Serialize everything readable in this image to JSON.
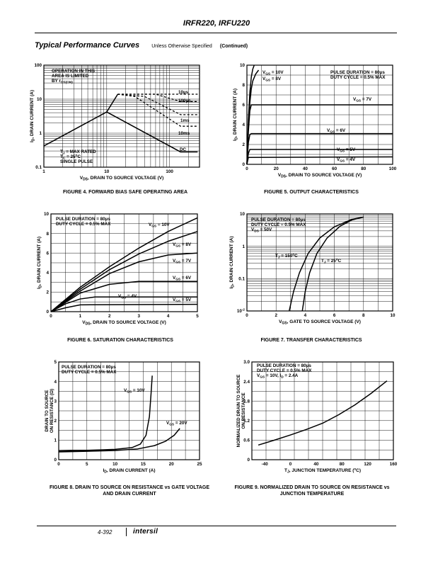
{
  "header": {
    "title": "IRFR220, IRFU220"
  },
  "section": {
    "title": "Typical Performance Curves",
    "note": "Unless Otherwise Specified",
    "continued": "(Continued)"
  },
  "footer": {
    "page": "4-392",
    "logo": "intersil"
  },
  "chart_data": [
    {
      "id": "fig4",
      "type": "line",
      "xscale": "log",
      "yscale": "log",
      "title": "FIGURE 4. FORWARD BIAS SAFE OPERATING AREA",
      "xlabel": "VDS, DRAIN TO SOURCE VOLTAGE (V)",
      "ylabel": "ID, DRAIN CURRENT (A)",
      "xlim": [
        1,
        300
      ],
      "ylim": [
        0.1,
        100
      ],
      "xticks": [
        1,
        10,
        100
      ],
      "xtick_labels": [
        "1",
        "10",
        "100"
      ],
      "yticks": [
        0.1,
        1,
        10,
        100
      ],
      "ytick_labels": [
        "0.1",
        "1",
        "10",
        "100"
      ],
      "grid": true,
      "annotations": [
        "OPERATION IN THIS",
        "AREA IS LIMITED",
        "BY rDS(ON)",
        "TJ = MAX RATED",
        "TC = 25oC",
        "SINGLE PULSE"
      ],
      "series": [
        {
          "name": "rDS(ON) limit",
          "style": "solid",
          "x": [
            1,
            10,
            15
          ],
          "y": [
            0.42,
            4.2,
            14
          ]
        },
        {
          "name": "10µs",
          "style": "dashed",
          "x": [
            15,
            150,
            280
          ],
          "y": [
            14,
            14,
            14
          ]
        },
        {
          "name": "100µs",
          "style": "dashed",
          "x": [
            15,
            60,
            150,
            280
          ],
          "y": [
            14,
            14,
            8.5,
            8.5
          ]
        },
        {
          "name": "1ms",
          "style": "dashed",
          "x": [
            15,
            40,
            150,
            280
          ],
          "y": [
            14,
            12,
            3.5,
            3.5
          ]
        },
        {
          "name": "10ms",
          "style": "dashed",
          "x": [
            15,
            28,
            150,
            280
          ],
          "y": [
            14,
            12,
            1.6,
            1.6
          ]
        },
        {
          "name": "DC",
          "style": "solid",
          "x": [
            10,
            150,
            280
          ],
          "y": [
            4.2,
            0.28,
            0.28
          ]
        }
      ]
    },
    {
      "id": "fig5",
      "type": "line",
      "title": "FIGURE 5. OUTPUT CHARACTERISTICS",
      "xlabel": "VDS, DRAIN TO SOURCE VOLTAGE (V)",
      "ylabel": "ID, DRAIN CURRENT (A)",
      "xlim": [
        0,
        100
      ],
      "ylim": [
        0,
        10
      ],
      "xticks": [
        0,
        20,
        40,
        60,
        80,
        100
      ],
      "xtick_labels": [
        "0",
        "20",
        "40",
        "60",
        "80",
        "100"
      ],
      "yticks": [
        0,
        2,
        4,
        6,
        8,
        10
      ],
      "ytick_labels": [
        "0",
        "2",
        "4",
        "6",
        "8",
        "10"
      ],
      "grid": true,
      "annotations": [
        "PULSE DURATION = 80µs",
        "DUTY CYCLE = 0.5% MAX"
      ],
      "series": [
        {
          "name": "VGS = 10V",
          "x": [
            0,
            1,
            2,
            3,
            4,
            5
          ],
          "y": [
            0,
            4.5,
            7.2,
            8.8,
            9.6,
            10
          ]
        },
        {
          "name": "VGS = 8V",
          "x": [
            0,
            1,
            2,
            3,
            4,
            6,
            8
          ],
          "y": [
            0,
            3.8,
            6.2,
            7.6,
            8.4,
            9.1,
            9.5
          ]
        },
        {
          "name": "VGS = 7V",
          "x": [
            0,
            1,
            2,
            3,
            100
          ],
          "y": [
            0,
            3.3,
            5.4,
            6.0,
            6.0
          ]
        },
        {
          "name": "VGS = 6V",
          "x": [
            0,
            1,
            2,
            3,
            100
          ],
          "y": [
            0,
            2.2,
            3.0,
            3.1,
            3.1
          ]
        },
        {
          "name": "VGS = 5V",
          "x": [
            0,
            1,
            2,
            100
          ],
          "y": [
            0,
            1.1,
            1.5,
            1.5
          ]
        },
        {
          "name": "VGS = 4V",
          "x": [
            0,
            1,
            100
          ],
          "y": [
            0,
            0.7,
            0.75
          ]
        }
      ]
    },
    {
      "id": "fig6",
      "type": "line",
      "title": "FIGURE 6. SATURATION CHARACTERISTICS",
      "xlabel": "VDS, DRAIN TO SOURCE VOLTAGE (V)",
      "ylabel": "ID, DRAIN CURRENT (A)",
      "xlim": [
        0,
        5
      ],
      "ylim": [
        0,
        10
      ],
      "xticks": [
        0,
        1,
        2,
        3,
        4,
        5
      ],
      "xtick_labels": [
        "0",
        "1",
        "2",
        "3",
        "4",
        "5"
      ],
      "yticks": [
        0,
        2,
        4,
        6,
        8,
        10
      ],
      "ytick_labels": [
        "0",
        "2",
        "4",
        "6",
        "8",
        "10"
      ],
      "grid": true,
      "annotations": [
        "PULSE DURATION = 80µs",
        "DUTY CYCLE = 0.5% MAX"
      ],
      "series": [
        {
          "name": "VGS = 10V",
          "x": [
            0,
            1,
            2,
            3,
            4,
            5
          ],
          "y": [
            0,
            2.5,
            4.6,
            6.5,
            8.2,
            9.6
          ]
        },
        {
          "name": "VGS = 8V",
          "x": [
            0,
            1,
            2,
            3,
            4,
            5
          ],
          "y": [
            0,
            2.3,
            4.3,
            5.9,
            7.2,
            8.2
          ]
        },
        {
          "name": "VGS = 7V",
          "x": [
            0,
            1,
            2,
            3,
            4,
            5
          ],
          "y": [
            0,
            2.1,
            3.9,
            5.1,
            5.8,
            6.0
          ]
        },
        {
          "name": "VGS = 6V",
          "x": [
            0,
            1,
            2,
            3,
            4,
            5
          ],
          "y": [
            0,
            1.9,
            2.8,
            3.1,
            3.1,
            3.1
          ]
        },
        {
          "name": "VGS = 5V",
          "x": [
            0,
            0.5,
            1,
            1.5,
            2,
            5
          ],
          "y": [
            0,
            0.8,
            1.3,
            1.5,
            1.5,
            1.5
          ]
        },
        {
          "name": "VGS = 4V",
          "x": [
            0,
            0.5,
            1,
            5
          ],
          "y": [
            0,
            0.4,
            0.7,
            0.75
          ]
        }
      ]
    },
    {
      "id": "fig7",
      "type": "line",
      "yscale": "log",
      "title": "FIGURE 7. TRANSFER CHARACTERISTICS",
      "xlabel": "VGS, GATE TO SOURCE VOLTAGE (V)",
      "ylabel": "ID, DRAIN CURRENT (A)",
      "xlim": [
        0,
        10
      ],
      "ylim": [
        0.01,
        10
      ],
      "xticks": [
        0,
        2,
        4,
        6,
        8,
        10
      ],
      "xtick_labels": [
        "0",
        "2",
        "4",
        "6",
        "8",
        "10"
      ],
      "yticks": [
        0.01,
        0.1,
        1,
        10
      ],
      "ytick_labels": [
        "10-2",
        "0.1",
        "1",
        "10"
      ],
      "grid": true,
      "annotations": [
        "PULSE DURATION = 80µs",
        "DUTY CYCLE = 0.5% MAX",
        "VDS = 50V"
      ],
      "series": [
        {
          "name": "TJ = 150oC",
          "x": [
            2.9,
            3.2,
            3.6,
            4.2,
            5.0,
            6.0,
            7.2,
            8.0
          ],
          "y": [
            0.01,
            0.04,
            0.15,
            0.6,
            1.8,
            4.0,
            6.8,
            8.0
          ]
        },
        {
          "name": "TJ = 25oC",
          "x": [
            3.8,
            4.0,
            4.3,
            4.8,
            5.5,
            6.4,
            7.2,
            8.0
          ],
          "y": [
            0.01,
            0.04,
            0.15,
            0.6,
            1.8,
            4.2,
            6.5,
            8.0
          ]
        }
      ]
    },
    {
      "id": "fig8",
      "type": "line",
      "title": "FIGURE 8. DRAIN TO SOURCE ON RESISTANCE vs GATE VOLTAGE AND DRAIN CURRENT",
      "xlabel": "ID, DRAIN CURRENT (A)",
      "ylabel": "rDS(ON), DRAIN TO SOURCE ON RESISTANCE (Ω)",
      "xlim": [
        0,
        25
      ],
      "ylim": [
        0,
        5
      ],
      "xticks": [
        0,
        5,
        10,
        15,
        20,
        25
      ],
      "xtick_labels": [
        "0",
        "5",
        "10",
        "15",
        "20",
        "25"
      ],
      "yticks": [
        0,
        1,
        2,
        3,
        4,
        5
      ],
      "ytick_labels": [
        "0",
        "1",
        "2",
        "3",
        "4",
        "5"
      ],
      "grid": true,
      "annotations": [
        "PULSE DURATION = 80µs",
        "DUTY CYCLE = 0.5% MAX"
      ],
      "series": [
        {
          "name": "VGS = 10V",
          "x": [
            0,
            5,
            10,
            13,
            14.5,
            15.5,
            16.1,
            16.4,
            16.6
          ],
          "y": [
            0.45,
            0.48,
            0.53,
            0.62,
            0.8,
            1.25,
            2.2,
            3.4,
            4.3
          ]
        },
        {
          "name": "VGS = 20V",
          "x": [
            0,
            5,
            10,
            14,
            17,
            19,
            20.5,
            21.5
          ],
          "y": [
            0.4,
            0.43,
            0.47,
            0.55,
            0.72,
            0.95,
            1.25,
            1.6
          ]
        }
      ]
    },
    {
      "id": "fig9",
      "type": "line",
      "title": "FIGURE 9. NORMALIZED DRAIN TO SOURCE ON RESISTANCE vs JUNCTION TEMPERATURE",
      "xlabel": "TJ, JUNCTION TEMPERATURE (oC)",
      "ylabel": "NORMALIZED DRAIN TO SOURCE ON RESISTANCE",
      "xlim": [
        -60,
        160
      ],
      "ylim": [
        0,
        3.0
      ],
      "xticks": [
        -40,
        0,
        40,
        80,
        120,
        160
      ],
      "xtick_labels": [
        "-40",
        "0",
        "40",
        "80",
        "120",
        "160"
      ],
      "yticks": [
        0,
        0.6,
        1.2,
        1.8,
        2.4,
        3.0
      ],
      "ytick_labels": [
        "0",
        "0.6",
        "1.2",
        "1.8",
        "2.4",
        "3.0"
      ],
      "grid": true,
      "annotations": [
        "PULSE DURATION = 80µs",
        "DUTY CYCLE = 0.5% MAX",
        "VGS = 10V, ID = 2.4A"
      ],
      "series": [
        {
          "name": "rDS(ON) normalized",
          "x": [
            -50,
            -25,
            0,
            25,
            50,
            75,
            100,
            125,
            150
          ],
          "y": [
            0.45,
            0.6,
            0.76,
            0.93,
            1.12,
            1.38,
            1.68,
            2.03,
            2.42
          ]
        }
      ]
    }
  ]
}
